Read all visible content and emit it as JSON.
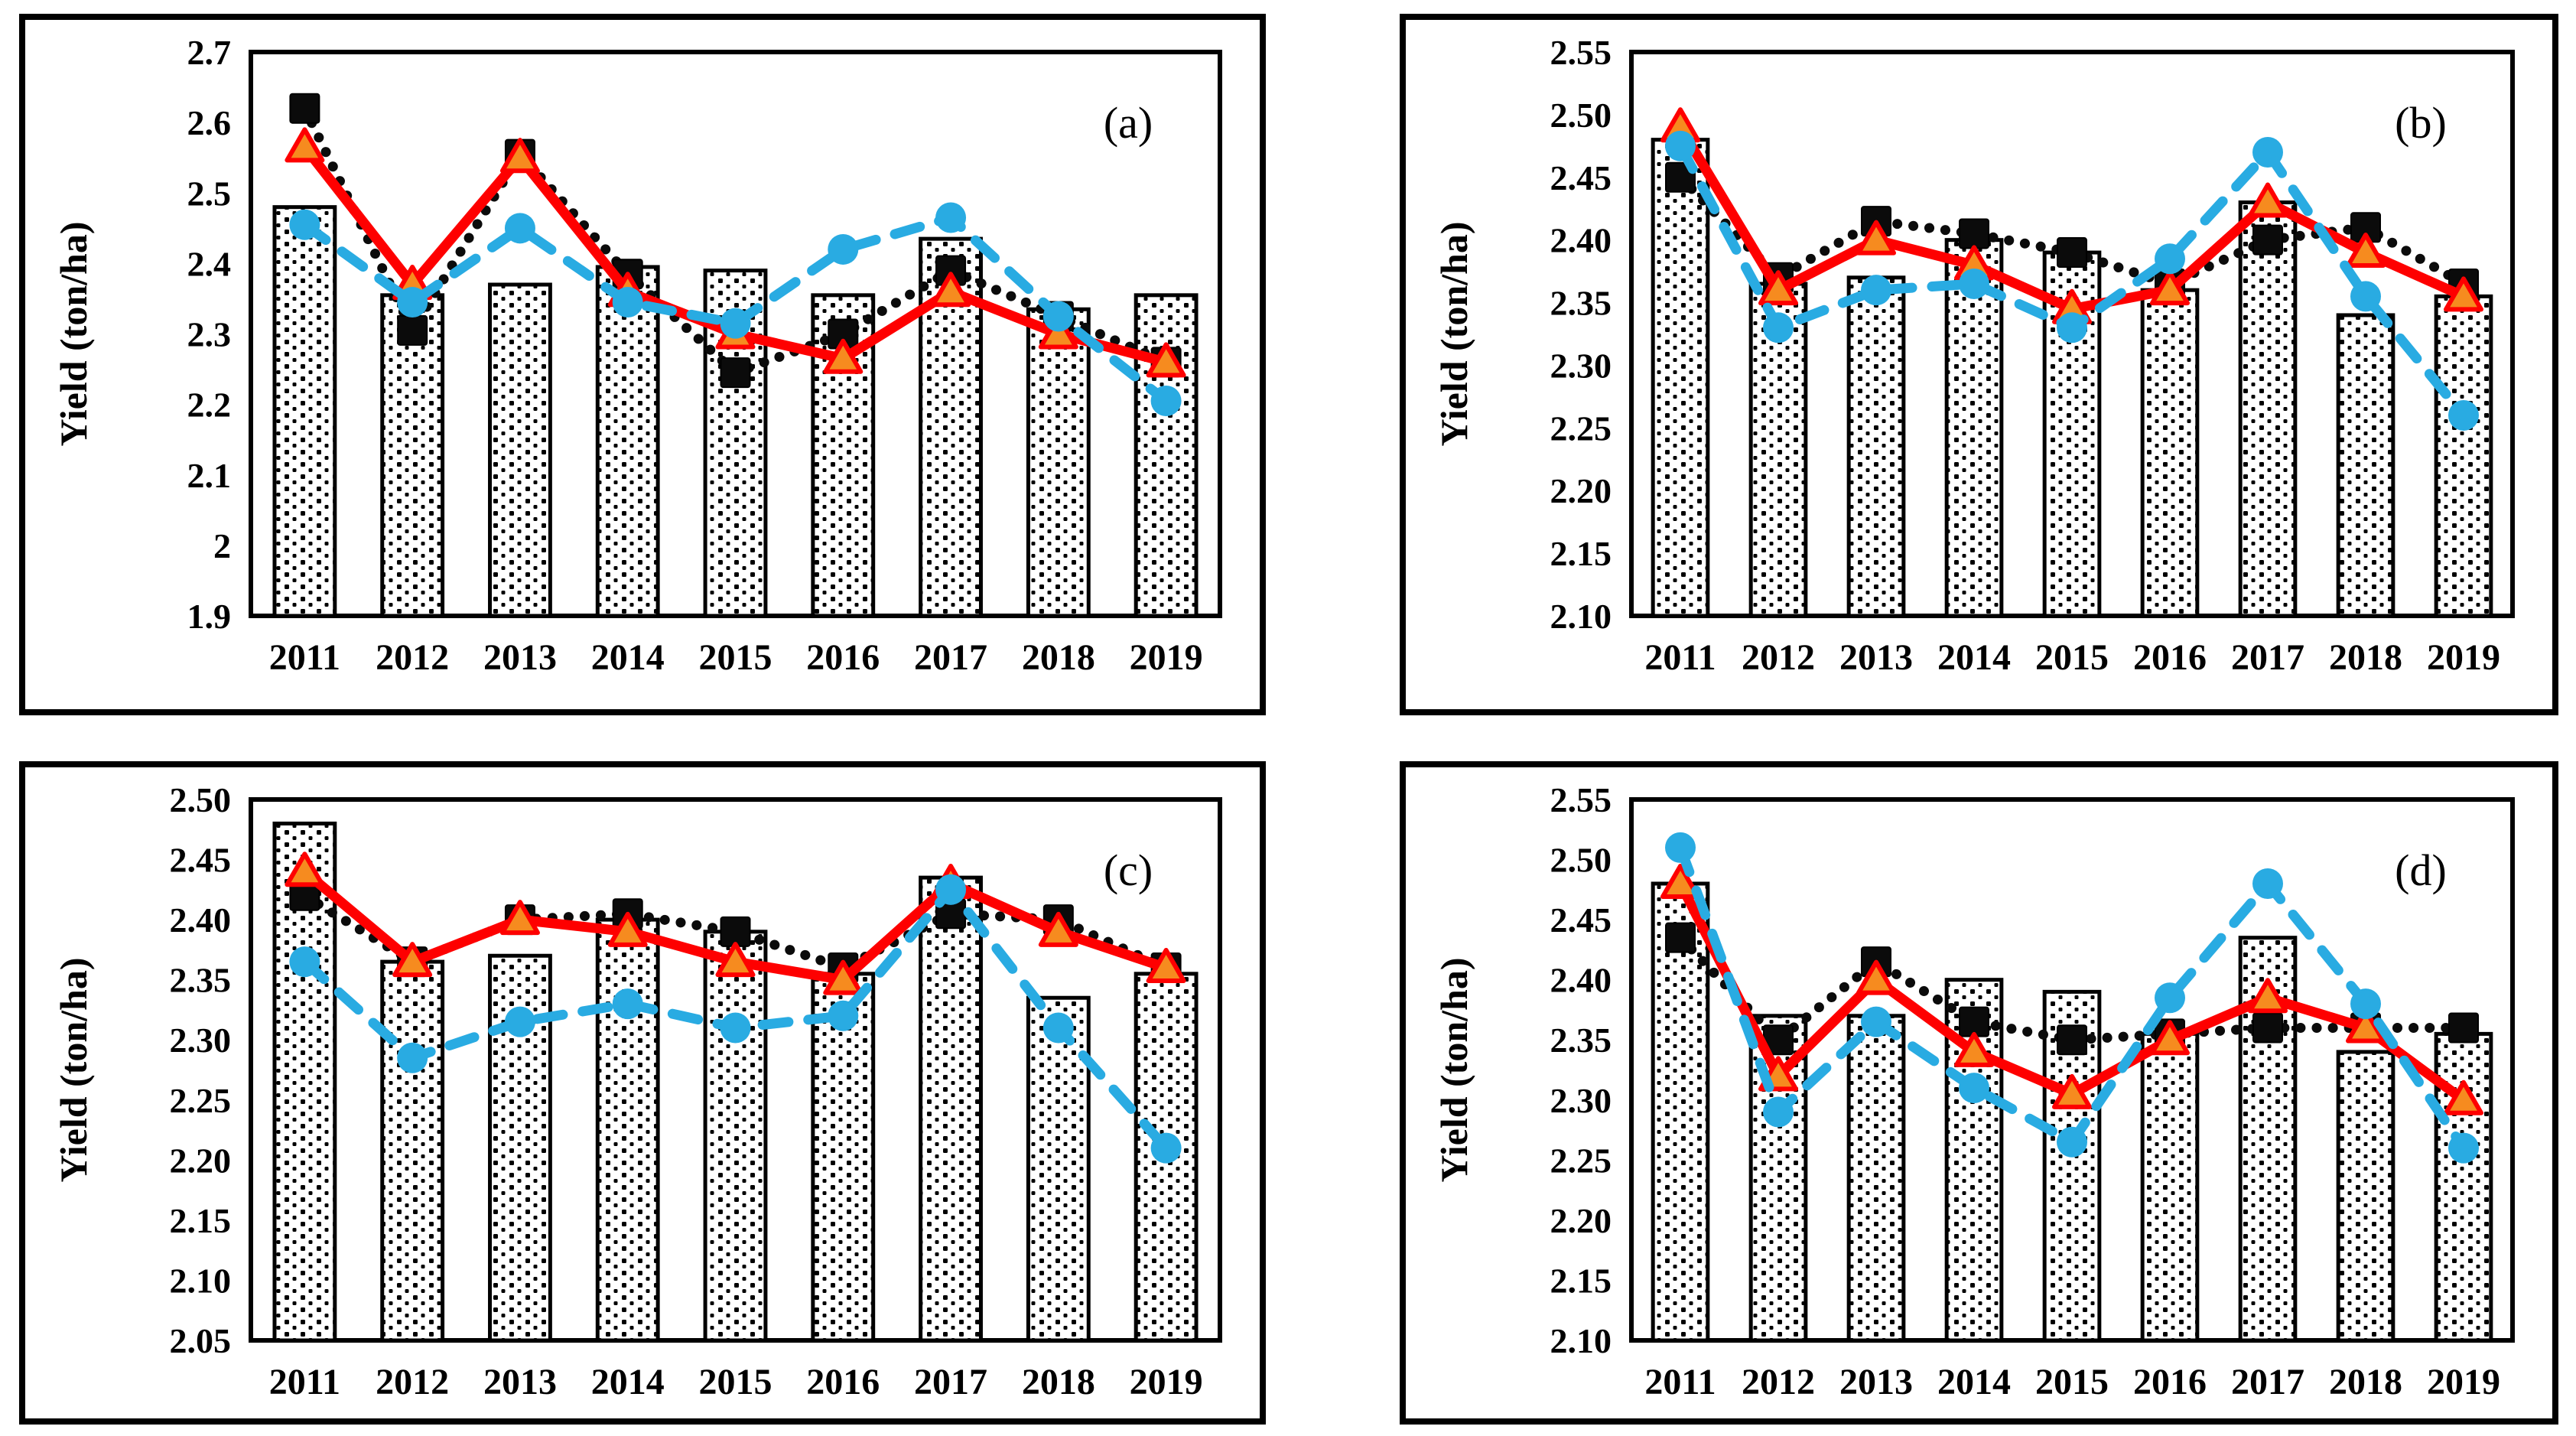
{
  "figure": {
    "background": "#ffffff",
    "ylabel": "Yield (ton/ha)"
  },
  "colors": {
    "frame": "#000000",
    "text": "#000000",
    "bar_fill": "#ffffff",
    "bar_dot": "#000000",
    "bar_border": "#000000",
    "black_series": "#0b0b0b",
    "red_series": "#fe0000",
    "triangle_fill": "#f68b1f",
    "blue_series": "#29abe2"
  },
  "chart_data": [
    {
      "id": "a",
      "panel_label": "(a)",
      "type": "bar+line",
      "ylabel": "Yield (ton/ha)",
      "xlabel": "",
      "grid": false,
      "legend": "none",
      "categories": [
        "2011",
        "2012",
        "2013",
        "2014",
        "2015",
        "2016",
        "2017",
        "2018",
        "2019"
      ],
      "ylim": [
        1.9,
        2.7
      ],
      "yticks": [
        1.9,
        2.0,
        2.1,
        2.2,
        2.3,
        2.4,
        2.5,
        2.6,
        2.7
      ],
      "ytick_labels": [
        "1.9",
        "2",
        "2.1",
        "2.2",
        "2.3",
        "2.4",
        "2.5",
        "2.6",
        "2.7"
      ],
      "bars": {
        "name": "yield-bars",
        "values": [
          2.48,
          2.355,
          2.37,
          2.395,
          2.39,
          2.355,
          2.435,
          2.335,
          2.355
        ]
      },
      "series": [
        {
          "name": "black-square-dotted-line",
          "marker": "square",
          "line_style": "dotted",
          "color": "#0b0b0b",
          "values": [
            2.62,
            2.305,
            2.555,
            2.385,
            2.245,
            2.3,
            2.39,
            2.325,
            2.26
          ]
        },
        {
          "name": "red-triangle-solid-line",
          "marker": "triangle",
          "line_style": "solid",
          "color": "#fe0000",
          "marker_fill": "#f68b1f",
          "values": [
            2.565,
            2.37,
            2.55,
            2.36,
            2.3,
            2.265,
            2.36,
            2.3,
            2.26
          ]
        },
        {
          "name": "blue-circle-dashed-line",
          "marker": "circle",
          "line_style": "dashed",
          "color": "#29abe2",
          "values": [
            2.455,
            2.345,
            2.45,
            2.345,
            2.315,
            2.42,
            2.465,
            2.325,
            2.205
          ]
        }
      ]
    },
    {
      "id": "b",
      "panel_label": "(b)",
      "type": "bar+line",
      "ylabel": "Yield (ton/ha)",
      "xlabel": "",
      "grid": false,
      "legend": "none",
      "categories": [
        "2011",
        "2012",
        "2013",
        "2014",
        "2015",
        "2016",
        "2017",
        "2018",
        "2019"
      ],
      "ylim": [
        2.1,
        2.55
      ],
      "yticks": [
        2.1,
        2.15,
        2.2,
        2.25,
        2.3,
        2.35,
        2.4,
        2.45,
        2.5,
        2.55
      ],
      "ytick_labels": [
        "2.10",
        "2.15",
        "2.20",
        "2.25",
        "2.30",
        "2.35",
        "2.40",
        "2.45",
        "2.50",
        "2.55"
      ],
      "bars": {
        "name": "yield-bars",
        "values": [
          2.48,
          2.365,
          2.37,
          2.4,
          2.39,
          2.36,
          2.43,
          2.34,
          2.355
        ]
      },
      "series": [
        {
          "name": "black-square-dotted-line",
          "marker": "square",
          "line_style": "dotted",
          "color": "#0b0b0b",
          "values": [
            2.45,
            2.37,
            2.415,
            2.405,
            2.39,
            2.365,
            2.4,
            2.41,
            2.365
          ]
        },
        {
          "name": "red-triangle-solid-line",
          "marker": "triangle",
          "line_style": "solid",
          "color": "#fe0000",
          "marker_fill": "#f68b1f",
          "values": [
            2.49,
            2.36,
            2.4,
            2.38,
            2.345,
            2.36,
            2.43,
            2.39,
            2.355
          ]
        },
        {
          "name": "blue-circle-dashed-line",
          "marker": "circle",
          "line_style": "dashed",
          "color": "#29abe2",
          "values": [
            2.475,
            2.33,
            2.36,
            2.365,
            2.33,
            2.385,
            2.47,
            2.355,
            2.26
          ]
        }
      ]
    },
    {
      "id": "c",
      "panel_label": "(c)",
      "type": "bar+line",
      "ylabel": "Yield (ton/ha)",
      "xlabel": "",
      "grid": false,
      "legend": "none",
      "categories": [
        "2011",
        "2012",
        "2013",
        "2014",
        "2015",
        "2016",
        "2017",
        "2018",
        "2019"
      ],
      "ylim": [
        2.05,
        2.5
      ],
      "yticks": [
        2.05,
        2.1,
        2.15,
        2.2,
        2.25,
        2.3,
        2.35,
        2.4,
        2.45,
        2.5
      ],
      "ytick_labels": [
        "2.05",
        "2.10",
        "2.15",
        "2.20",
        "2.25",
        "2.30",
        "2.35",
        "2.40",
        "2.45",
        "2.50"
      ],
      "bars": {
        "name": "yield-bars",
        "values": [
          2.48,
          2.365,
          2.37,
          2.4,
          2.39,
          2.355,
          2.435,
          2.335,
          2.355
        ]
      },
      "series": [
        {
          "name": "black-square-dotted-line",
          "marker": "square",
          "line_style": "dotted",
          "color": "#0b0b0b",
          "values": [
            2.42,
            2.365,
            2.4,
            2.405,
            2.39,
            2.36,
            2.405,
            2.4,
            2.36
          ]
        },
        {
          "name": "red-triangle-solid-line",
          "marker": "triangle",
          "line_style": "solid",
          "color": "#fe0000",
          "marker_fill": "#f68b1f",
          "values": [
            2.44,
            2.365,
            2.4,
            2.39,
            2.365,
            2.35,
            2.43,
            2.39,
            2.36
          ]
        },
        {
          "name": "blue-circle-dashed-line",
          "marker": "circle",
          "line_style": "dashed",
          "color": "#29abe2",
          "values": [
            2.365,
            2.285,
            2.315,
            2.33,
            2.31,
            2.32,
            2.425,
            2.31,
            2.21
          ]
        }
      ]
    },
    {
      "id": "d",
      "panel_label": "(d)",
      "type": "bar+line",
      "ylabel": "Yield (ton/ha)",
      "xlabel": "",
      "grid": false,
      "legend": "none",
      "categories": [
        "2011",
        "2012",
        "2013",
        "2014",
        "2015",
        "2016",
        "2017",
        "2018",
        "2019"
      ],
      "ylim": [
        2.1,
        2.55
      ],
      "yticks": [
        2.1,
        2.15,
        2.2,
        2.25,
        2.3,
        2.35,
        2.4,
        2.45,
        2.5,
        2.55
      ],
      "ytick_labels": [
        "2.10",
        "2.15",
        "2.20",
        "2.25",
        "2.30",
        "2.35",
        "2.40",
        "2.45",
        "2.50",
        "2.55"
      ],
      "bars": {
        "name": "yield-bars",
        "values": [
          2.48,
          2.37,
          2.37,
          2.4,
          2.39,
          2.355,
          2.435,
          2.34,
          2.355
        ]
      },
      "series": [
        {
          "name": "black-square-dotted-line",
          "marker": "square",
          "line_style": "dotted",
          "color": "#0b0b0b",
          "values": [
            2.435,
            2.35,
            2.415,
            2.365,
            2.35,
            2.355,
            2.36,
            2.36,
            2.36
          ]
        },
        {
          "name": "red-triangle-solid-line",
          "marker": "triangle",
          "line_style": "solid",
          "color": "#fe0000",
          "marker_fill": "#f68b1f",
          "values": [
            2.48,
            2.32,
            2.4,
            2.34,
            2.305,
            2.35,
            2.385,
            2.36,
            2.3
          ]
        },
        {
          "name": "blue-circle-dashed-line",
          "marker": "circle",
          "line_style": "dashed",
          "color": "#29abe2",
          "values": [
            2.51,
            2.29,
            2.365,
            2.31,
            2.265,
            2.385,
            2.48,
            2.38,
            2.26
          ]
        }
      ]
    }
  ]
}
